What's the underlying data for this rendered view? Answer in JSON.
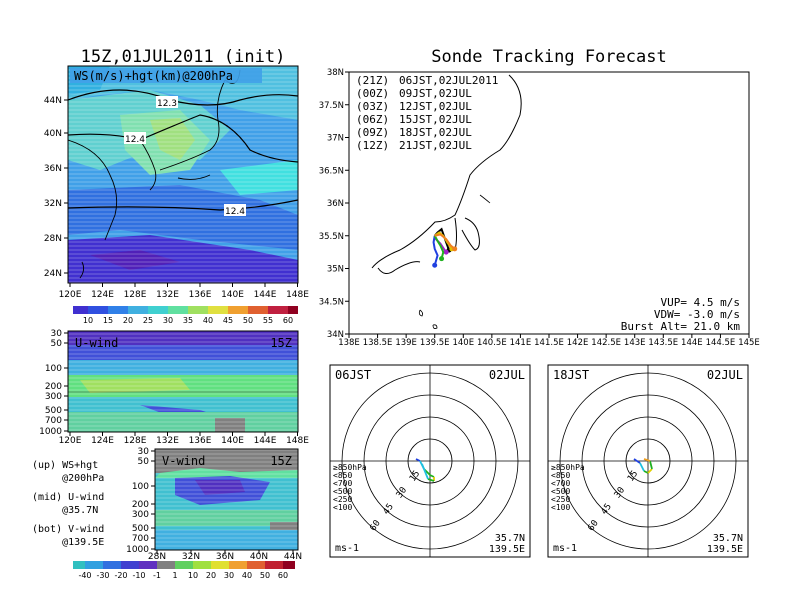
{
  "left": {
    "title": "15Z,01JUL2011 (init)",
    "map_label": "WS(m/s)+hgt(km)@200hPa",
    "lat_ticks": [
      "44N",
      "40N",
      "36N",
      "32N",
      "28N",
      "24N"
    ],
    "lon_ticks": [
      "120E",
      "124E",
      "128E",
      "132E",
      "136E",
      "140E",
      "144E",
      "148E"
    ],
    "hgt_labels": [
      "12.3",
      "12.4",
      "12.4"
    ],
    "ws_colorbar": [
      "10",
      "15",
      "20",
      "25",
      "30",
      "35",
      "40",
      "45",
      "50",
      "55",
      "60"
    ],
    "uwind_label": "U-wind",
    "uwind_time": "15Z",
    "vwind_label": "V-wind",
    "vwind_time": "15Z",
    "pres_ticks": [
      "30",
      "50",
      "100",
      "200",
      "300",
      "500",
      "700",
      "1000"
    ],
    "lat_ticks_v": [
      "28N",
      "32N",
      "36N",
      "40N",
      "44N"
    ],
    "legend_lines": [
      [
        "(up) WS+hgt",
        "     @200hPa"
      ],
      [
        "(mid) U-wind",
        "     @35.7N"
      ],
      [
        "(bot) V-wind",
        "     @139.5E"
      ]
    ],
    "v_colorbar": [
      "-40",
      "-30",
      "-20",
      "-10",
      "-1",
      "1",
      "10",
      "20",
      "30",
      "40",
      "50",
      "60"
    ]
  },
  "right": {
    "title": "Sonde Tracking Forecast",
    "lat_ticks": [
      "38N",
      "37.5N",
      "37N",
      "36.5N",
      "36N",
      "35.5N",
      "35N",
      "34.5N",
      "34N"
    ],
    "lon_ticks": [
      "138E",
      "138.5E",
      "139E",
      "139.5E",
      "140E",
      "140.5E",
      "141E",
      "141.5E",
      "142E",
      "142.5E",
      "143E",
      "143.5E",
      "144E",
      "144.5E",
      "145E"
    ],
    "legend": [
      {
        "utc": "(21Z)",
        "jst": "06JST,02JUL2011",
        "color": "#000000"
      },
      {
        "utc": "(00Z)",
        "jst": "09JST,02JUL",
        "color": "#a020c8"
      },
      {
        "utc": "(03Z)",
        "jst": "12JST,02JUL",
        "color": "#2040e0"
      },
      {
        "utc": "(06Z)",
        "jst": "15JST,02JUL",
        "color": "#20b020"
      },
      {
        "utc": "(09Z)",
        "jst": "18JST,02JUL",
        "color": "#e0c000"
      },
      {
        "utc": "(12Z)",
        "jst": "21JST,02JUL",
        "color": "#f08020"
      }
    ],
    "params": [
      "VUP= 4.5 m/s",
      "VDW= -3.0 m/s",
      "Burst Alt= 21.0 km"
    ]
  },
  "hodographs": [
    {
      "time": "06JST",
      "date": "02JUL",
      "unit": "ms-1",
      "lat": "35.7N",
      "lon": "139.5E"
    },
    {
      "time": "18JST",
      "date": "02JUL",
      "unit": "ms-1",
      "lat": "35.7N",
      "lon": "139.5E"
    }
  ],
  "hodo_rings": [
    "15",
    "30",
    "45",
    "60"
  ],
  "hodo_levels": [
    {
      "label": "≥850hPa",
      "color": "#e02020"
    },
    {
      "label": "<850",
      "color": "#f0a020"
    },
    {
      "label": "<700",
      "color": "#e0d000"
    },
    {
      "label": "<500",
      "color": "#20b020"
    },
    {
      "label": "<250",
      "color": "#20c0e0"
    },
    {
      "label": "<100",
      "color": "#2040e0"
    }
  ],
  "chart_data": {
    "type": "line",
    "title": "Sonde Tracking Forecast",
    "xlim": [
      138,
      145
    ],
    "ylim": [
      34,
      38
    ],
    "series": [
      {
        "name": "(21Z) 06JST,02JUL2011",
        "x": [
          139.5,
          139.55,
          139.62,
          139.7,
          139.75
        ],
        "y": [
          35.5,
          35.55,
          35.6,
          35.4,
          35.28
        ]
      },
      {
        "name": "(00Z) 09JST,02JUL",
        "x": [
          139.5,
          139.52,
          139.6,
          139.66,
          139.7
        ],
        "y": [
          35.5,
          35.45,
          35.38,
          35.3,
          35.25
        ]
      },
      {
        "name": "(03Z) 12JST,02JUL",
        "x": [
          139.5,
          139.48,
          139.5,
          139.55,
          139.5
        ],
        "y": [
          35.5,
          35.4,
          35.3,
          35.2,
          35.05
        ]
      },
      {
        "name": "(06Z) 15JST,02JUL",
        "x": [
          139.5,
          139.55,
          139.6,
          139.65,
          139.62
        ],
        "y": [
          35.5,
          35.42,
          35.35,
          35.25,
          35.15
        ]
      },
      {
        "name": "(09Z) 18JST,02JUL",
        "x": [
          139.5,
          139.58,
          139.65,
          139.72,
          139.8
        ],
        "y": [
          35.5,
          35.55,
          35.5,
          35.4,
          35.3
        ]
      },
      {
        "name": "(12Z) 21JST,02JUL",
        "x": [
          139.5,
          139.6,
          139.7,
          139.78,
          139.85
        ],
        "y": [
          35.5,
          35.52,
          35.45,
          35.35,
          35.3
        ]
      }
    ]
  },
  "colors": {
    "frame": "#000000"
  }
}
